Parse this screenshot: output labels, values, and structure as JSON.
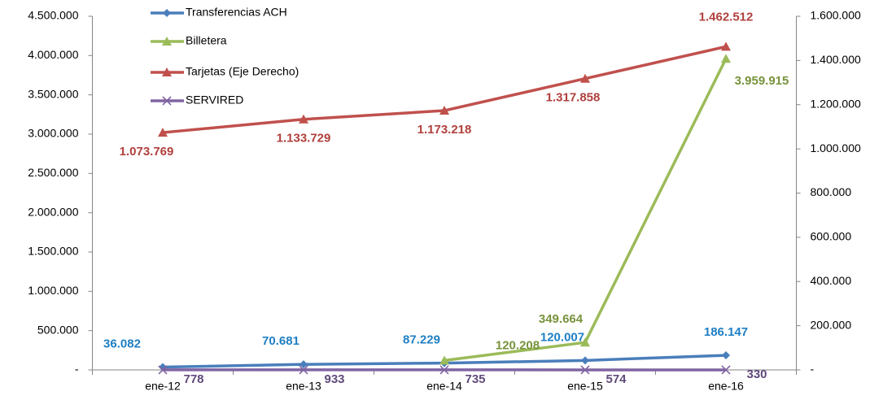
{
  "chart_data": {
    "type": "line",
    "categories": [
      "ene-12",
      "ene-13",
      "ene-14",
      "ene-15",
      "ene-16"
    ],
    "ylim": [
      0,
      4500000
    ],
    "yticks": [
      {
        "value": 0,
        "label": "-"
      },
      {
        "value": 500000,
        "label": "500.000"
      },
      {
        "value": 1000000,
        "label": "1.000.000"
      },
      {
        "value": 1500000,
        "label": "1.500.000"
      },
      {
        "value": 2000000,
        "label": "2.000.000"
      },
      {
        "value": 2500000,
        "label": "2.500.000"
      },
      {
        "value": 3000000,
        "label": "3.000.000"
      },
      {
        "value": 3500000,
        "label": "3.500.000"
      },
      {
        "value": 4000000,
        "label": "4.000.000"
      },
      {
        "value": 4500000,
        "label": "4.500.000"
      }
    ],
    "y2lim": [
      0,
      1600000
    ],
    "y2ticks": [
      {
        "value": 0,
        "label": "-"
      },
      {
        "value": 200000,
        "label": "200.000"
      },
      {
        "value": 400000,
        "label": "400.000"
      },
      {
        "value": 600000,
        "label": "600.000"
      },
      {
        "value": 800000,
        "label": "800.000"
      },
      {
        "value": 1000000,
        "label": "1.000.000"
      },
      {
        "value": 1200000,
        "label": "1.200.000"
      },
      {
        "value": 1400000,
        "label": "1.400.000"
      },
      {
        "value": 1600000,
        "label": "1.600.000"
      }
    ],
    "legend": "top-left",
    "series": [
      {
        "name": "Transferencias ACH",
        "color": "#4a7ebb",
        "label_color": "#1f7fc4",
        "marker": "diamond",
        "values": [
          36082,
          70681,
          87229,
          120007,
          186147
        ],
        "value_labels": [
          "36.082",
          "70.681",
          "87.229",
          "120.007",
          "186.147"
        ]
      },
      {
        "name": "Billetera",
        "color": "#9bbb59",
        "label_color": "#77933c",
        "marker": "triangle",
        "values": [
          null,
          null,
          120208,
          349664,
          3959915
        ],
        "value_labels": [
          null,
          null,
          "120.208",
          "349.664",
          "3.959.915"
        ]
      },
      {
        "name": "Tarjetas (Eje Derecho)",
        "color": "#c0504d",
        "label_color": "#b0403d",
        "marker": "triangle",
        "axis": "y2",
        "values": [
          1073769,
          1133729,
          1173218,
          1317858,
          1462512
        ],
        "value_labels": [
          "1.073.769",
          "1.133.729",
          "1.173.218",
          "1.317.858",
          "1.462.512"
        ]
      },
      {
        "name": "SERVIRED",
        "color": "#8064a2",
        "label_color": "#604a7b",
        "marker": "x",
        "values": [
          778,
          933,
          735,
          574,
          330
        ],
        "value_labels": [
          "778",
          "933",
          "735",
          "574",
          "330"
        ]
      }
    ]
  }
}
